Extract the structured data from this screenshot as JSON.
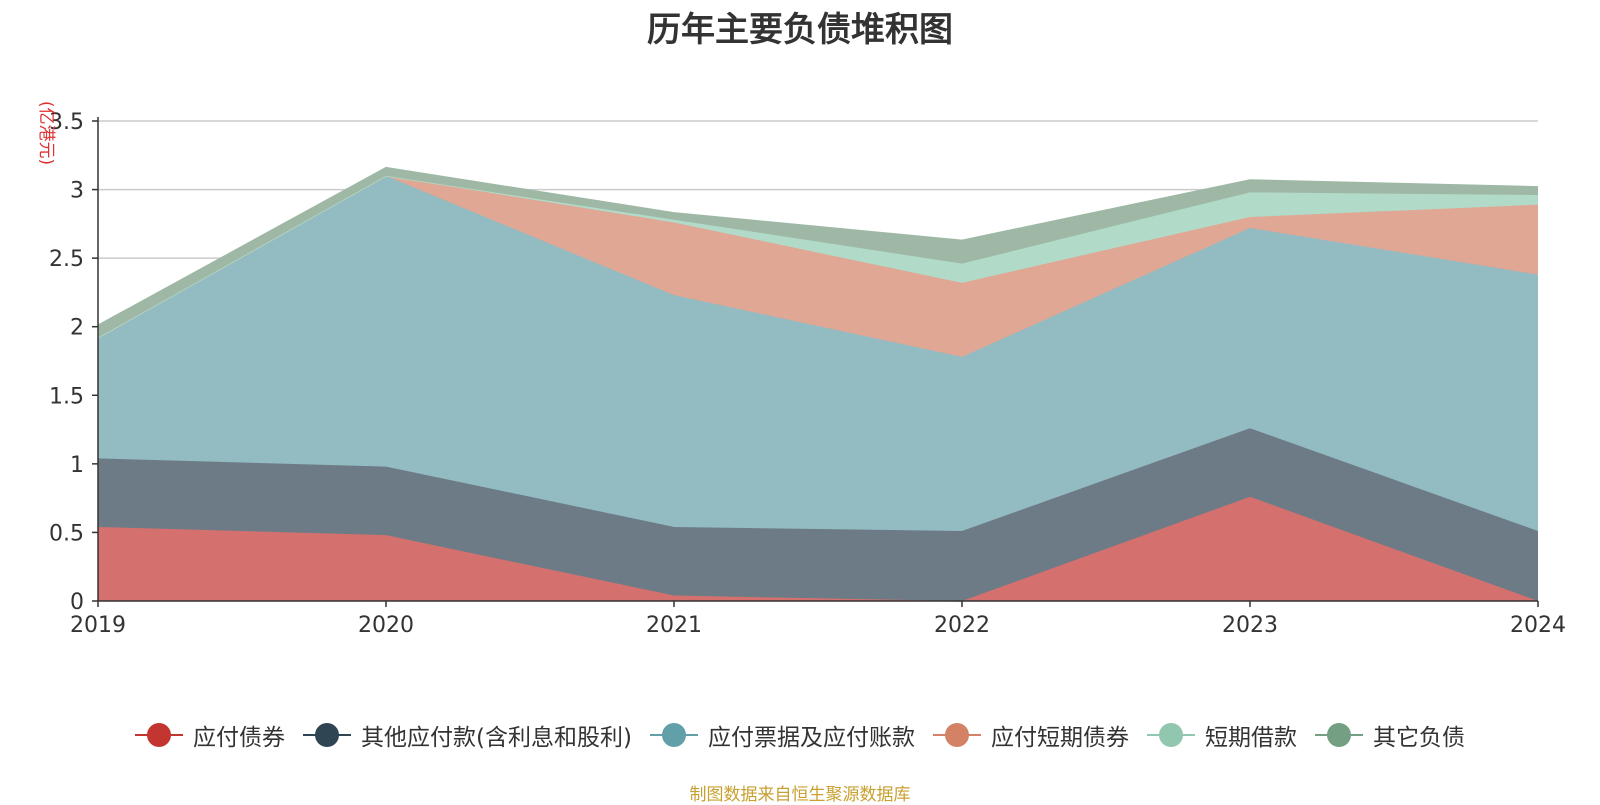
{
  "chart_data": {
    "type": "area",
    "stacked": true,
    "title": "历年主要负债堆积图",
    "unit_label": "(亿港元)",
    "categories": [
      "2019",
      "2020",
      "2021",
      "2022",
      "2023",
      "2024"
    ],
    "ylim": [
      0,
      3.5
    ],
    "yticks": [
      0,
      0.5,
      1,
      1.5,
      2,
      2.5,
      3,
      3.5
    ],
    "ytick_labels": [
      "0",
      "0.5",
      "1",
      "1.5",
      "2",
      "2.5",
      "3",
      "3.5"
    ],
    "grid": true,
    "legend_position": "bottom",
    "series": [
      {
        "name": "应付债券",
        "color": "#c23531",
        "fill": "#d4716f",
        "values": [
          0.54,
          0.48,
          0.04,
          0.0,
          0.76,
          0.0
        ]
      },
      {
        "name": "其他应付款(含利息和股利)",
        "color": "#2f4554",
        "fill": "#6d7b86",
        "values": [
          0.5,
          0.5,
          0.5,
          0.51,
          0.5,
          0.51
        ]
      },
      {
        "name": "应付票据及应付账款",
        "color": "#61a0a8",
        "fill": "#92bbc2",
        "values": [
          0.88,
          2.12,
          1.69,
          1.27,
          1.46,
          1.87
        ]
      },
      {
        "name": "应付短期债券",
        "color": "#d48265",
        "fill": "#e0a794",
        "values": [
          0.0,
          0.0,
          0.53,
          0.54,
          0.08,
          0.51
        ]
      },
      {
        "name": "短期借款",
        "color": "#91c7ae",
        "fill": "#b1dac8",
        "values": [
          0.0,
          0.0,
          0.02,
          0.14,
          0.18,
          0.07
        ]
      },
      {
        "name": "其它负债",
        "color": "#749f83",
        "fill": "#9eb8a5",
        "values": [
          0.09,
          0.06,
          0.05,
          0.17,
          0.09,
          0.06
        ]
      }
    ]
  },
  "source_note": "制图数据来自恒生聚源数据库"
}
